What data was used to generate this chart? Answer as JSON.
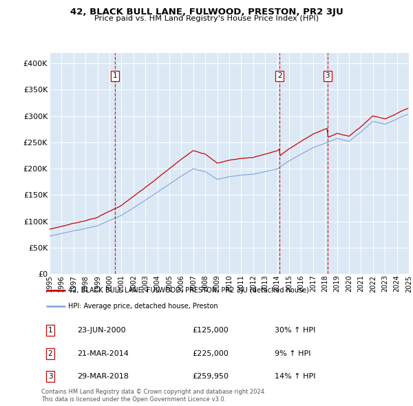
{
  "title": "42, BLACK BULL LANE, FULWOOD, PRESTON, PR2 3JU",
  "subtitle": "Price paid vs. HM Land Registry's House Price Index (HPI)",
  "sale_label": "42, BLACK BULL LANE, FULWOOD, PRESTON, PR2 3JU (detached house)",
  "hpi_label": "HPI: Average price, detached house, Preston",
  "sale_color": "#cc0000",
  "hpi_color": "#88aadd",
  "bg_color": "#dce9f5",
  "transactions": [
    {
      "num": 1,
      "date": "23-JUN-2000",
      "price": 125000,
      "pct": "30%",
      "dir": "↑"
    },
    {
      "num": 2,
      "date": "21-MAR-2014",
      "price": 225000,
      "pct": "9%",
      "dir": "↑"
    },
    {
      "num": 3,
      "date": "29-MAR-2018",
      "price": 259950,
      "pct": "14%",
      "dir": "↑"
    }
  ],
  "footer": "Contains HM Land Registry data © Crown copyright and database right 2024.\nThis data is licensed under the Open Government Licence v3.0.",
  "ylim": [
    0,
    420000
  ],
  "yticks": [
    0,
    50000,
    100000,
    150000,
    200000,
    250000,
    300000,
    350000,
    400000
  ],
  "x_start_year": 1995,
  "x_end_year": 2025,
  "sale_times": [
    2000.46,
    2014.21,
    2018.21
  ],
  "sale_prices": [
    125000,
    225000,
    259950
  ],
  "hpi_knots": [
    1995,
    1997,
    1999,
    2001,
    2003,
    2005,
    2007,
    2008,
    2009,
    2010,
    2011,
    2012,
    2013,
    2014,
    2015,
    2016,
    2017,
    2018,
    2019,
    2020,
    2021,
    2022,
    2023,
    2024,
    2025
  ],
  "hpi_vals": [
    72000,
    82000,
    92000,
    112000,
    140000,
    170000,
    200000,
    195000,
    180000,
    185000,
    188000,
    190000,
    195000,
    200000,
    215000,
    228000,
    240000,
    248000,
    258000,
    252000,
    270000,
    290000,
    285000,
    295000,
    305000
  ]
}
